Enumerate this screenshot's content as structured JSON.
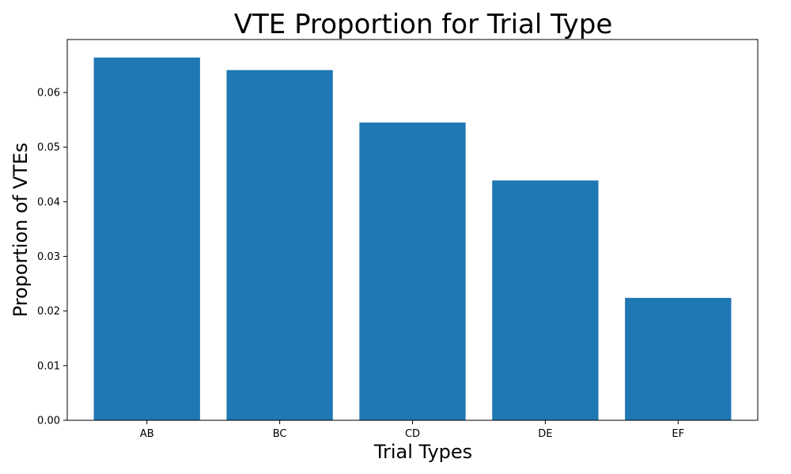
{
  "chart_data": {
    "type": "bar",
    "title": "VTE Proportion for Trial Type",
    "xlabel": "Trial Types",
    "ylabel": "Proportion of VTEs",
    "categories": [
      "AB",
      "BC",
      "CD",
      "DE",
      "EF"
    ],
    "values": [
      0.0664,
      0.0641,
      0.0545,
      0.0439,
      0.0224
    ],
    "ylim": [
      0,
      0.0697
    ],
    "yticks": [
      "0.00",
      "0.01",
      "0.02",
      "0.03",
      "0.04",
      "0.05",
      "0.06"
    ],
    "bar_color": "#1f77b4",
    "grid": false,
    "legend": "none"
  }
}
